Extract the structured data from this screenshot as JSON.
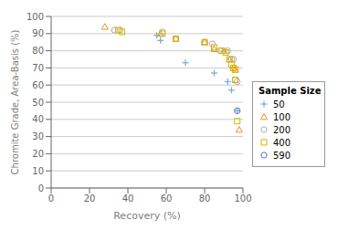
{
  "chart_data": {
    "type": "scatter",
    "title": "",
    "xlabel": "Recovery (%)",
    "ylabel": "Chromite Grade, Area-Basis (%)",
    "xlim": [
      0,
      100
    ],
    "ylim": [
      0,
      100
    ],
    "xticks": [
      0,
      20,
      40,
      60,
      80,
      100
    ],
    "yticks": [
      0,
      10,
      20,
      30,
      40,
      50,
      60,
      70,
      80,
      90,
      100
    ],
    "grid": true,
    "legend_title": "Sample Size",
    "series": [
      {
        "name": "50",
        "color": "#7ab0d4",
        "marker": "plus",
        "x": [
          55,
          57,
          70,
          85,
          92,
          94,
          97
        ],
        "values": [
          89,
          86,
          73,
          67,
          62,
          57,
          45
        ]
      },
      {
        "name": "100",
        "color": "#e8922a",
        "marker": "triangle",
        "x": [
          28,
          57,
          65,
          80,
          85,
          90,
          93,
          95,
          96,
          98
        ],
        "values": [
          94,
          90,
          87,
          85,
          81,
          80,
          75,
          70,
          69,
          34
        ]
      },
      {
        "name": "200",
        "color": "#aaaaaa",
        "marker": "circle",
        "x": [
          33,
          36,
          58,
          65,
          80,
          84,
          88,
          92,
          94,
          95,
          96,
          97
        ],
        "values": [
          92,
          92,
          91,
          87,
          85,
          84,
          80,
          80,
          75,
          75,
          63,
          62
        ]
      },
      {
        "name": "400",
        "color": "#d4b800",
        "marker": "square",
        "x": [
          35,
          37,
          58,
          65,
          80,
          85,
          89,
          91,
          93,
          94,
          95,
          96,
          96,
          97
        ],
        "values": [
          92,
          91,
          90,
          87,
          85,
          82,
          80,
          79,
          75,
          72,
          70,
          69,
          63,
          39
        ]
      },
      {
        "name": "590",
        "color": "#5577bb",
        "marker": "circle",
        "x": [
          97
        ],
        "values": [
          45
        ]
      }
    ]
  }
}
